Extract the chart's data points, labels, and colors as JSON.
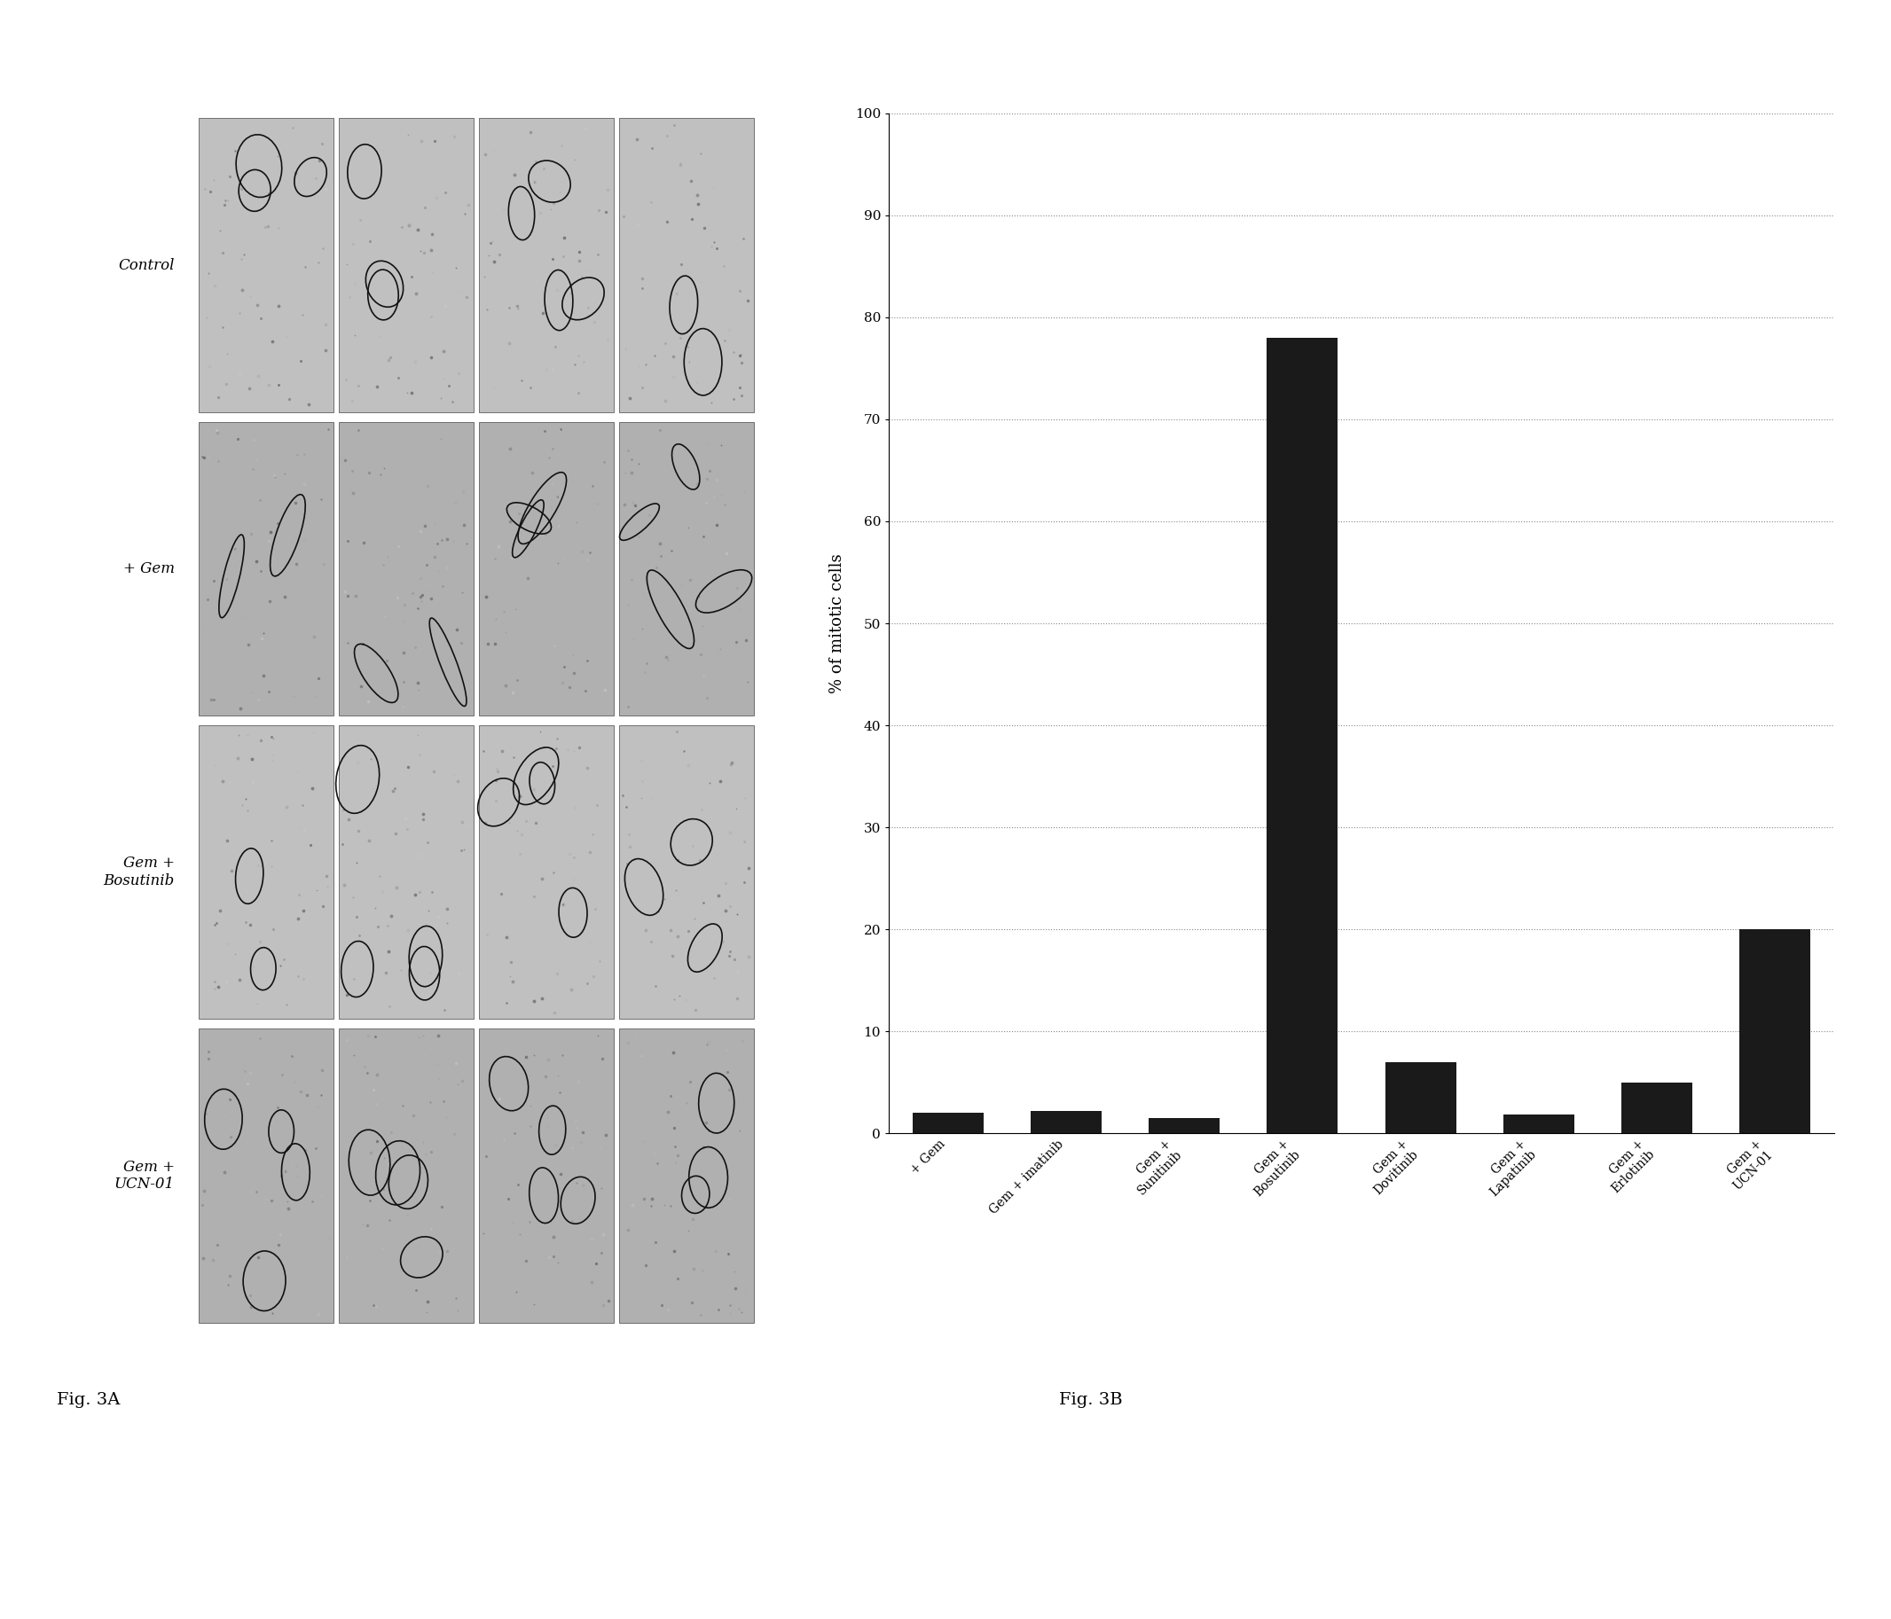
{
  "fig3b": {
    "categories": [
      "+ Gem",
      "Gem + imatinib",
      "Gem +\nSunitinib",
      "Gem +\nBosutinib",
      "Gem +\nDovitinib",
      "Gem +\nLapatinib",
      "Gem +\nErlotinib",
      "Gem +\nUCN-01"
    ],
    "values": [
      2.0,
      2.2,
      1.5,
      78.0,
      7.0,
      1.8,
      5.0,
      20.0
    ],
    "bar_color": "#1a1a1a",
    "ylabel": "% of mitotic cells",
    "ylim": [
      0,
      100
    ],
    "yticks": [
      0,
      10,
      20,
      30,
      40,
      50,
      60,
      70,
      80,
      90,
      100
    ],
    "grid_color": "#888888",
    "fig_label_3b": "Fig. 3B"
  },
  "fig3a": {
    "row_labels": [
      "Control",
      "+ Gem",
      "Gem +\nBosutinib",
      "Gem +\nUCN-01"
    ],
    "fig_label_3a": "Fig. 3A",
    "n_cols": 4,
    "n_rows": 4
  },
  "background_color": "#ffffff",
  "fig_width": 21.32,
  "fig_height": 18.26
}
